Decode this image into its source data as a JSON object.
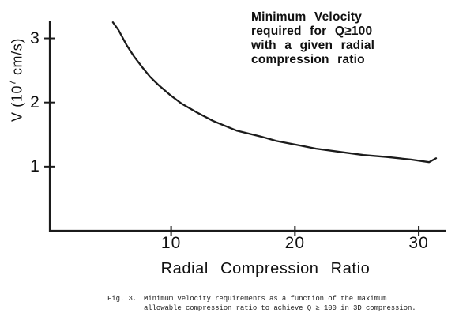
{
  "figure": {
    "annotation": {
      "lines": [
        "Minimum Velocity",
        "required for Q≥100",
        "with a given radial",
        "compression ratio"
      ]
    },
    "y_axis": {
      "label_prefix": "V (10",
      "label_exponent": "7",
      "label_suffix": " cm/s)"
    },
    "x_axis": {
      "title": "Radial Compression Ratio"
    }
  },
  "caption": {
    "tag": "Fig. 3.",
    "line1": "Minimum velocity requirements as a function of the maximum",
    "line2": "allowable compression ratio to achieve Q ≥ 100 in 3D compression."
  },
  "chart_data": {
    "type": "line",
    "title": "Minimum Velocity required for Q≥100 with a given radial compression ratio",
    "xlabel": "Radial Compression Ratio",
    "ylabel": "V (10^7 cm/s)",
    "xlim": [
      0.2,
      32.1
    ],
    "ylim": [
      0,
      3.253
    ],
    "x_ticks": [
      10,
      20,
      30
    ],
    "y_ticks": [
      1,
      2,
      3
    ],
    "grid": false,
    "legend": false,
    "ink_color": "#1b1b1b",
    "series": [
      {
        "name": "minimum-velocity-curve",
        "points": [
          [
            5.3,
            3.25
          ],
          [
            5.75,
            3.13
          ],
          [
            6.39,
            2.9
          ],
          [
            7.03,
            2.71
          ],
          [
            7.67,
            2.55
          ],
          [
            8.3,
            2.4
          ],
          [
            8.94,
            2.28
          ],
          [
            9.9,
            2.12
          ],
          [
            10.86,
            1.98
          ],
          [
            12.13,
            1.84
          ],
          [
            13.41,
            1.71
          ],
          [
            15.32,
            1.56
          ],
          [
            17.24,
            1.47
          ],
          [
            18.51,
            1.4
          ],
          [
            20.43,
            1.33
          ],
          [
            21.71,
            1.28
          ],
          [
            23.62,
            1.23
          ],
          [
            25.54,
            1.18
          ],
          [
            27.45,
            1.15
          ],
          [
            29.36,
            1.11
          ],
          [
            30.83,
            1.07
          ],
          [
            31.4,
            1.13
          ]
        ]
      }
    ]
  }
}
